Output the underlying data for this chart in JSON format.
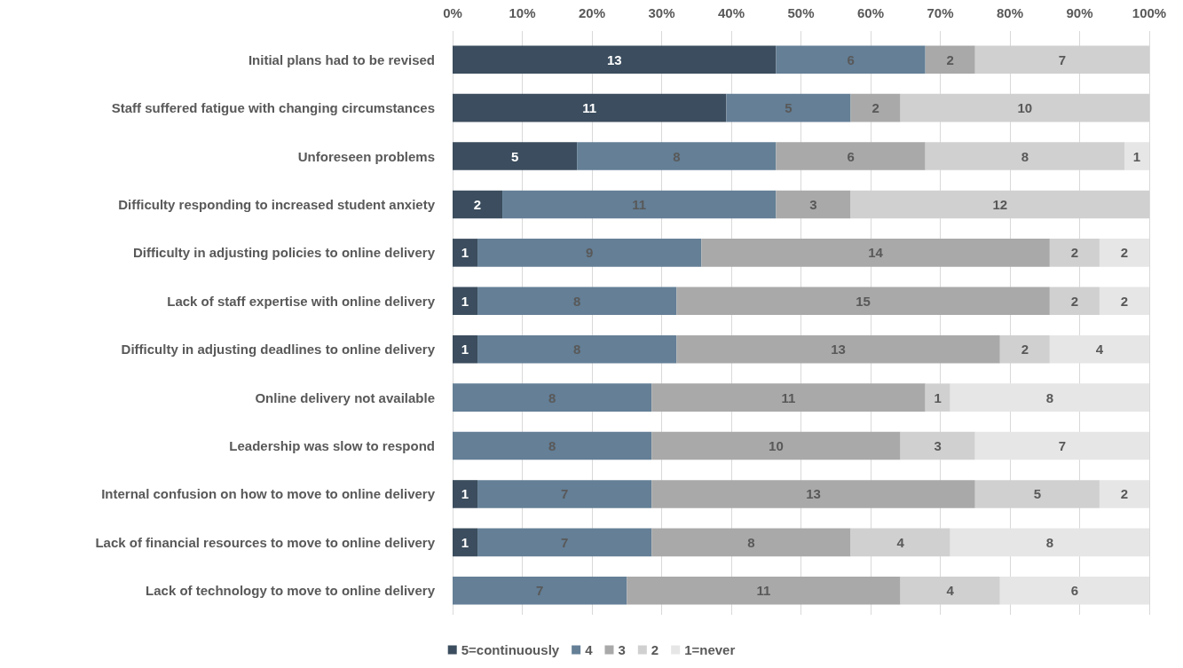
{
  "chart_data": {
    "type": "bar",
    "orientation": "horizontal",
    "stacked": true,
    "data_labels": true,
    "grid": "x",
    "legend": "bottom",
    "categories": [
      "Initial plans had to be revised",
      "Staff suffered fatigue with changing circumstances",
      "Unforeseen problems",
      "Difficulty responding to increased student anxiety",
      "Difficulty in adjusting policies to online delivery",
      "Lack of staff expertise with online delivery",
      "Difficulty in adjusting deadlines to online delivery",
      "Online delivery not available",
      "Leadership was slow to respond",
      "Internal confusion on how to move to online delivery",
      "Lack of financial resources to move to online delivery",
      "Lack of technology to move to online delivery"
    ],
    "xlim": [
      0,
      28
    ],
    "x2lim": [
      0,
      100
    ],
    "x2ticks": [
      {
        "value": 0,
        "label": "0%"
      },
      {
        "value": 10,
        "label": "10%"
      },
      {
        "value": 20,
        "label": "20%"
      },
      {
        "value": 30,
        "label": "30%"
      },
      {
        "value": 40,
        "label": "40%"
      },
      {
        "value": 50,
        "label": "50%"
      },
      {
        "value": 60,
        "label": "60%"
      },
      {
        "value": 70,
        "label": "70%"
      },
      {
        "value": 80,
        "label": "80%"
      },
      {
        "value": 90,
        "label": "90%"
      },
      {
        "value": 100,
        "label": "100%"
      }
    ],
    "series": [
      {
        "name": "5=continuously",
        "color": "#3b4d5e",
        "values": [
          13,
          11,
          5,
          2,
          1,
          1,
          1,
          null,
          null,
          1,
          1,
          null
        ]
      },
      {
        "name": "4",
        "color": "#647f96",
        "values": [
          6,
          5,
          8,
          11,
          9,
          8,
          8,
          8,
          8,
          7,
          7,
          7
        ]
      },
      {
        "name": "3",
        "color": "#a9a9a9",
        "values": [
          2,
          2,
          6,
          3,
          14,
          15,
          13,
          11,
          10,
          13,
          8,
          11
        ]
      },
      {
        "name": "2",
        "color": "#d0d0d0",
        "values": [
          7,
          10,
          8,
          12,
          2,
          2,
          2,
          1,
          3,
          5,
          4,
          4
        ]
      },
      {
        "name": "1=never",
        "color": "#e6e6e6",
        "values": [
          null,
          null,
          1,
          null,
          2,
          2,
          4,
          8,
          7,
          2,
          8,
          6
        ]
      }
    ]
  }
}
